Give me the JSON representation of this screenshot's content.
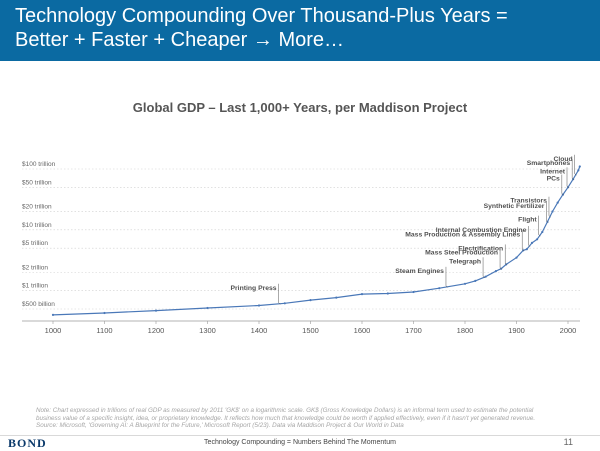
{
  "header": {
    "title_line1": "Technology Compounding Over Thousand-Plus Years =",
    "title_line2": "Better + Faster + Cheaper → More…"
  },
  "chart_data": {
    "type": "line",
    "title": "Global GDP – Last 1,000+ Years, per Maddison Project",
    "xlabel": "",
    "ylabel": "",
    "y_scale": "log",
    "grid": true,
    "series_color": "#4a78b8",
    "xlim": [
      1000,
      2000
    ],
    "x_ticks": [
      1000,
      1100,
      1200,
      1300,
      1400,
      1500,
      1600,
      1700,
      1800,
      1900,
      2000
    ],
    "y_ticks": [
      {
        "value": 100,
        "label": "$100 trillion"
      },
      {
        "value": 50,
        "label": "$50 trillion"
      },
      {
        "value": 20,
        "label": "$20 trillion"
      },
      {
        "value": 10,
        "label": "$10 trillion"
      },
      {
        "value": 5,
        "label": "$5 trillion"
      },
      {
        "value": 2,
        "label": "$2 trillion"
      },
      {
        "value": 1,
        "label": "$1 trillion"
      },
      {
        "value": 0.5,
        "label": "$500 billion"
      }
    ],
    "series": [
      {
        "x": [
          1000,
          1100,
          1200,
          1300,
          1400,
          1450,
          1500,
          1550,
          1600,
          1650,
          1700,
          1750,
          1800,
          1820,
          1840,
          1860,
          1870,
          1880,
          1900,
          1913,
          1920,
          1930,
          1940,
          1950,
          1960,
          1970,
          1980,
          1990,
          2000,
          2010,
          2020,
          2023
        ],
        "y": [
          0.4,
          0.43,
          0.47,
          0.52,
          0.57,
          0.62,
          0.7,
          0.77,
          0.88,
          0.9,
          0.95,
          1.1,
          1.3,
          1.45,
          1.7,
          2.1,
          2.3,
          2.7,
          3.5,
          4.6,
          4.8,
          6.1,
          7.0,
          9.2,
          13.5,
          20,
          28,
          38,
          50,
          68,
          95,
          110
        ]
      }
    ],
    "annotations": [
      {
        "text": "Printing Press",
        "x": 1440
      },
      {
        "text": "Steam Engines",
        "x": 1765
      },
      {
        "text": "Telegraph",
        "x": 1837
      },
      {
        "text": "Electrification",
        "x": 1880
      },
      {
        "text": "Mass Steel Production",
        "x": 1870
      },
      {
        "text": "Mass Production & Assembly Lines",
        "x": 1913
      },
      {
        "text": "Internal Combustion Engine",
        "x": 1925
      },
      {
        "text": "Flight",
        "x": 1945
      },
      {
        "text": "Synthetic Fertilizer",
        "x": 1960
      },
      {
        "text": "Transistors",
        "x": 1965
      },
      {
        "text": "PCs",
        "x": 1990
      },
      {
        "text": "Internet",
        "x": 2000
      },
      {
        "text": "Smartphones",
        "x": 2010
      },
      {
        "text": "Cloud",
        "x": 2015
      }
    ]
  },
  "footnote": {
    "line1": "Note: Chart expressed in trillions of real GDP as measured by 2011 'GK$' on a logarithmic scale. GK$ (Gross Knowledge Dollars) is an informal term used to estimate the potential",
    "line2": "business value of a specific insight, idea, or proprietary knowledge. It reflects how much that knowledge could be worth if applied effectively, even if it hasn't yet generated revenue.",
    "line3": "Source: Microsoft, 'Governing AI: A Blueprint for the Future,' Microsoft Report (5/23). Data via Maddison Project & Our World in Data"
  },
  "footer": {
    "logo": "BOND",
    "text": "Technology Compounding = Numbers Behind The Momentum",
    "page_number": "11"
  }
}
